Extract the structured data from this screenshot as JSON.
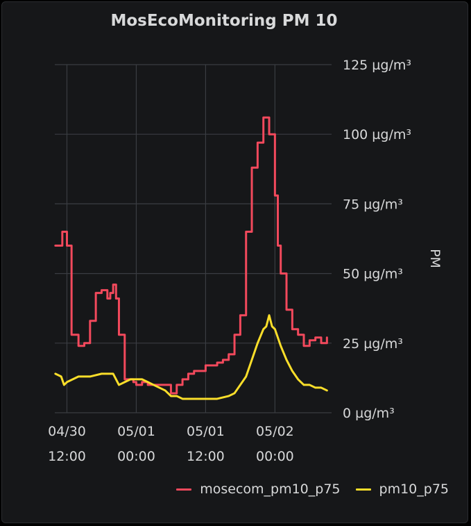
{
  "panel": {
    "title": "MosEcoMonitoring PM 10"
  },
  "chart_data": {
    "type": "line",
    "title": "MosEcoMonitoring PM 10",
    "ylabel": "PM",
    "ylim": [
      0,
      125
    ],
    "y_unit": "µg/m³",
    "y_ticks": [
      "0 µg/m³",
      "25 µg/m³",
      "50 µg/m³",
      "75 µg/m³",
      "100 µg/m³",
      "125 µg/m³"
    ],
    "x_ticks": [
      {
        "hours": 0,
        "line1": "04/30",
        "line2": "12:00"
      },
      {
        "hours": 12,
        "line1": "05/01",
        "line2": "00:00"
      },
      {
        "hours": 24,
        "line1": "05/01",
        "line2": "12:00"
      },
      {
        "hours": 36,
        "line1": "05/02",
        "line2": "00:00"
      }
    ],
    "xlim_hours": [
      -2.1,
      45.8
    ],
    "grid": true,
    "legend_position": "bottom-right",
    "series": [
      {
        "name": "mosecom_pm10_p75",
        "color": "#f2495c",
        "step": true,
        "x": [
          -2,
          -0.8,
          0,
          0.8,
          2,
          3,
          4,
          5,
          6,
          7,
          7.5,
          8,
          8.5,
          9,
          10,
          11,
          11.5,
          12,
          13,
          14,
          15,
          16,
          17,
          18,
          19,
          20,
          21,
          22,
          23,
          24,
          25,
          26,
          27,
          28,
          29,
          30,
          31,
          32,
          33,
          34,
          35,
          36,
          36.5,
          37,
          38,
          39,
          40,
          41,
          42,
          43,
          44,
          45
        ],
        "y": [
          60,
          65,
          60,
          28,
          24,
          25,
          33,
          43,
          44,
          41,
          43,
          46,
          41,
          28,
          12,
          12,
          11,
          10,
          11,
          10,
          10,
          10,
          10,
          7,
          10,
          12,
          14,
          15,
          15,
          17,
          17,
          18,
          19,
          21,
          28,
          35,
          65,
          88,
          97,
          106,
          100,
          78,
          60,
          50,
          37,
          30,
          28,
          24,
          26,
          27,
          25,
          27
        ]
      },
      {
        "name": "pm10_p75",
        "color": "#fade2a",
        "step": false,
        "x": [
          -2,
          -1,
          -0.5,
          0,
          1,
          2,
          4,
          6,
          8,
          9,
          10,
          11,
          12,
          13,
          14,
          15,
          16,
          17,
          18,
          19,
          20,
          22,
          24,
          26,
          28,
          29,
          30,
          31,
          32,
          33,
          34,
          34.5,
          35,
          35.5,
          36,
          37,
          38,
          39,
          40,
          41,
          42,
          43,
          44,
          45
        ],
        "y": [
          14,
          13,
          10,
          11,
          12,
          13,
          13,
          14,
          14,
          10,
          11,
          12,
          12,
          12,
          11,
          10,
          9,
          8,
          6,
          6,
          5,
          5,
          5,
          5,
          6,
          7,
          10,
          13,
          19,
          25,
          30,
          31,
          35,
          31,
          30,
          24,
          19,
          15,
          12,
          10,
          10,
          9,
          9,
          8
        ]
      }
    ]
  }
}
